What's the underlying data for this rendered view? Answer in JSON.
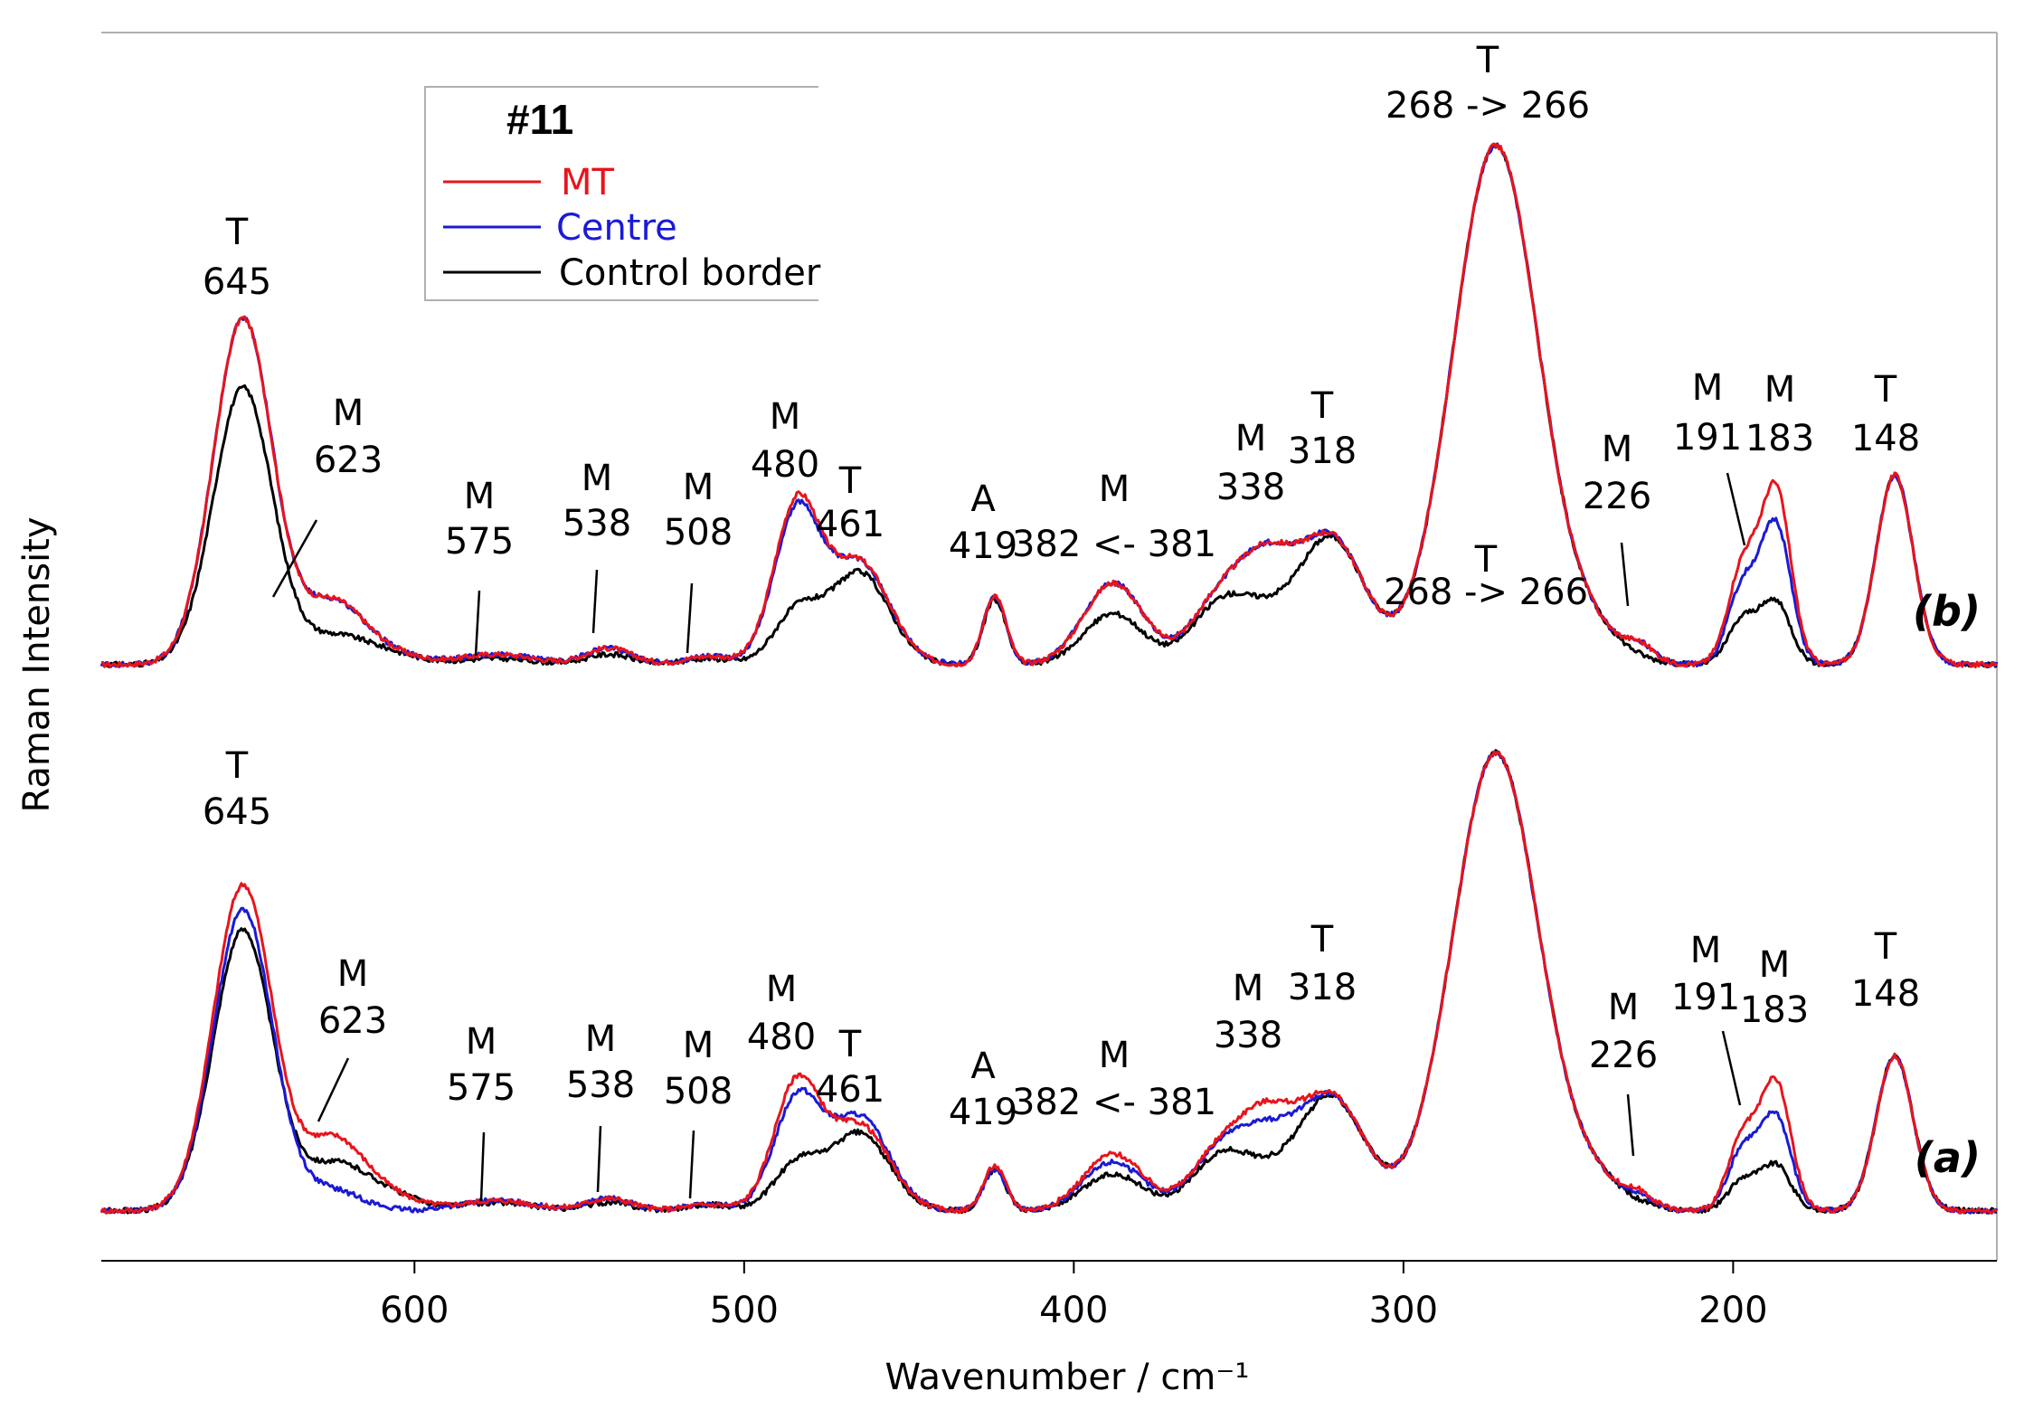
{
  "chart_data": {
    "type": "line",
    "title": "",
    "xlabel": "Wavenumber / cm⁻¹",
    "ylabel": "Raman Intensity",
    "xlim": [
      695,
      120
    ],
    "x_reversed": true,
    "xticks": [
      600,
      500,
      400,
      300,
      200
    ],
    "grid": false,
    "legend": {
      "title": "#11",
      "position": "top-left",
      "entries": [
        {
          "name": "MT",
          "color": "#e8141c"
        },
        {
          "name": "Centre",
          "color": "#1a1ad6"
        },
        {
          "name": "Control border",
          "color": "#000000"
        }
      ]
    },
    "panels": [
      {
        "label": "(b)",
        "baseline": 0.05,
        "peaks": [
          {
            "center": 652,
            "width": 9,
            "amps": [
              1.7,
              1.7,
              1.36
            ]
          },
          {
            "center": 625,
            "width": 9,
            "amps": [
              0.29,
              0.29,
              0.12
            ]
          },
          {
            "center": 610,
            "width": 10,
            "amps": [
              0.06,
              0.06,
              0.06
            ]
          },
          {
            "center": 575,
            "width": 11,
            "amps": [
              0.05,
              0.05,
              0.03
            ]
          },
          {
            "center": 541,
            "width": 7,
            "amps": [
              0.08,
              0.08,
              0.05
            ]
          },
          {
            "center": 511,
            "width": 7,
            "amps": [
              0.04,
              0.04,
              0.03
            ]
          },
          {
            "center": 484,
            "width": 7,
            "amps": [
              0.78,
              0.74,
              0.25
            ]
          },
          {
            "center": 465,
            "width": 9,
            "amps": [
              0.5,
              0.5,
              0.45
            ]
          },
          {
            "center": 424,
            "width": 3.4,
            "amps": [
              0.34,
              0.34,
              0.32
            ]
          },
          {
            "center": 388,
            "width": 9,
            "amps": [
              0.4,
              0.4,
              0.25
            ]
          },
          {
            "center": 355,
            "width": 9,
            "amps": [
              0.33,
              0.33,
              0.3
            ]
          },
          {
            "center": 341,
            "width": 8,
            "amps": [
              0.4,
              0.4,
              0.15
            ]
          },
          {
            "center": 322,
            "width": 10,
            "amps": [
              0.62,
              0.62,
              0.62
            ]
          },
          {
            "center": 272,
            "width": 13,
            "amps": [
              2.55,
              2.55,
              2.55
            ]
          },
          {
            "center": 242,
            "width": 10,
            "amps": [
              0.12,
              0.12,
              0.12
            ]
          },
          {
            "center": 228,
            "width": 4,
            "amps": [
              0.06,
              0.06,
              0.0
            ]
          },
          {
            "center": 197,
            "width": 4.5,
            "amps": [
              0.48,
              0.38,
              0.22
            ]
          },
          {
            "center": 187,
            "width": 4.5,
            "amps": [
              0.85,
              0.68,
              0.3
            ]
          },
          {
            "center": 151,
            "width": 5.6,
            "amps": [
              0.93,
              0.93,
              0.93
            ]
          }
        ],
        "annotations": [
          {
            "label": "T",
            "value": "645",
            "x": 645
          },
          {
            "label": "M",
            "value": "623",
            "x": 623
          },
          {
            "label": "M",
            "value": "575",
            "x": 575
          },
          {
            "label": "M",
            "value": "538",
            "x": 538
          },
          {
            "label": "M",
            "value": "508",
            "x": 508
          },
          {
            "label": "M",
            "value": "480",
            "x": 480
          },
          {
            "label": "T",
            "value": "461",
            "x": 461
          },
          {
            "label": "A",
            "value": "419",
            "x": 419
          },
          {
            "label": "M",
            "value": "382 <- 381",
            "x": 382
          },
          {
            "label": "M",
            "value": "338",
            "x": 338
          },
          {
            "label": "T",
            "value": "318",
            "x": 318
          },
          {
            "label": "T",
            "value": "268 -> 266",
            "x": 268
          },
          {
            "label": "M",
            "value": "226",
            "x": 226
          },
          {
            "label": "M",
            "value": "191",
            "x": 191
          },
          {
            "label": "M",
            "value": "183",
            "x": 183
          },
          {
            "label": "T",
            "value": "148",
            "x": 148
          }
        ]
      },
      {
        "label": "(a)",
        "baseline": 0.05,
        "peaks": [
          {
            "center": 652,
            "width": 9,
            "amps": [
              1.6,
              1.48,
              1.38
            ]
          },
          {
            "center": 625,
            "width": 9,
            "amps": [
              0.33,
              0.1,
              0.2
            ]
          },
          {
            "center": 610,
            "width": 10,
            "amps": [
              0.08,
              0.0,
              0.09
            ]
          },
          {
            "center": 575,
            "width": 11,
            "amps": [
              0.05,
              0.05,
              0.04
            ]
          },
          {
            "center": 541,
            "width": 7,
            "amps": [
              0.06,
              0.06,
              0.04
            ]
          },
          {
            "center": 511,
            "width": 7,
            "amps": [
              0.03,
              0.03,
              0.03
            ]
          },
          {
            "center": 484,
            "width": 7,
            "amps": [
              0.62,
              0.54,
              0.22
            ]
          },
          {
            "center": 465,
            "width": 9,
            "amps": [
              0.42,
              0.46,
              0.38
            ]
          },
          {
            "center": 424,
            "width": 3.4,
            "amps": [
              0.22,
              0.2,
              0.2
            ]
          },
          {
            "center": 388,
            "width": 9,
            "amps": [
              0.28,
              0.24,
              0.18
            ]
          },
          {
            "center": 355,
            "width": 9,
            "amps": [
              0.3,
              0.3,
              0.27
            ]
          },
          {
            "center": 341,
            "width": 8,
            "amps": [
              0.36,
              0.27,
              0.1
            ]
          },
          {
            "center": 322,
            "width": 10,
            "amps": [
              0.56,
              0.56,
              0.56
            ]
          },
          {
            "center": 272,
            "width": 13,
            "amps": [
              2.25,
              2.25,
              2.25
            ]
          },
          {
            "center": 242,
            "width": 10,
            "amps": [
              0.12,
              0.12,
              0.12
            ]
          },
          {
            "center": 228,
            "width": 4,
            "amps": [
              0.05,
              0.03,
              0.0
            ]
          },
          {
            "center": 197,
            "width": 4.5,
            "amps": [
              0.36,
              0.3,
              0.15
            ]
          },
          {
            "center": 187,
            "width": 4.5,
            "amps": [
              0.62,
              0.46,
              0.22
            ]
          },
          {
            "center": 151,
            "width": 5.6,
            "amps": [
              0.76,
              0.76,
              0.76
            ]
          }
        ],
        "annotations": [
          {
            "label": "T",
            "value": "645",
            "x": 645
          },
          {
            "label": "M",
            "value": "623",
            "x": 623
          },
          {
            "label": "M",
            "value": "575",
            "x": 575
          },
          {
            "label": "M",
            "value": "538",
            "x": 538
          },
          {
            "label": "M",
            "value": "508",
            "x": 508
          },
          {
            "label": "M",
            "value": "480",
            "x": 480
          },
          {
            "label": "T",
            "value": "461",
            "x": 461
          },
          {
            "label": "A",
            "value": "419",
            "x": 419
          },
          {
            "label": "M",
            "value": "382 <- 381",
            "x": 382
          },
          {
            "label": "M",
            "value": "338",
            "x": 338
          },
          {
            "label": "T",
            "value": "318",
            "x": 318
          },
          {
            "label": "T",
            "value": "268 -> 266",
            "x": 268
          },
          {
            "label": "M",
            "value": "226",
            "x": 226
          },
          {
            "label": "M",
            "value": "191",
            "x": 191
          },
          {
            "label": "M",
            "value": "183",
            "x": 183
          },
          {
            "label": "T",
            "value": "148",
            "x": 148
          }
        ]
      }
    ]
  }
}
